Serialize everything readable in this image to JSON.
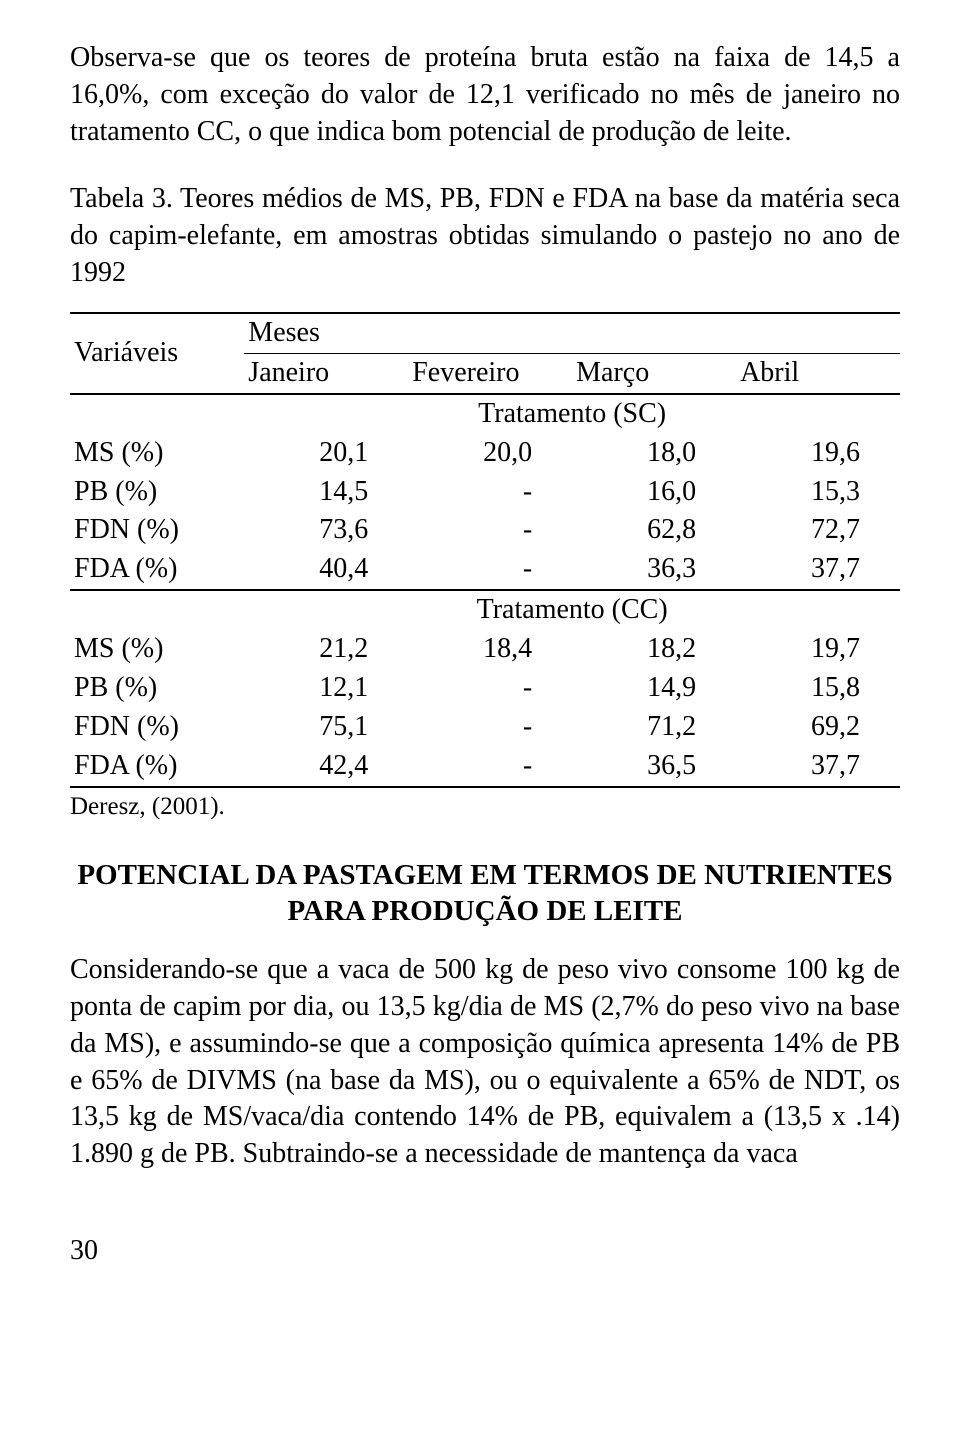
{
  "para1": "Observa-se que os teores de proteína bruta estão na faixa de 14,5 a 16,0%, com exceção do valor de 12,1 verificado no mês de janeiro no tratamento CC, o que indica bom potencial de produção de leite.",
  "tableCaption": "Tabela 3. Teores médios de MS, PB, FDN e FDA na base da matéria seca do capim-elefante, em amostras obtidas simulando o pastejo no ano de 1992",
  "headerVar": "Variáveis",
  "headerMeses": "Meses",
  "months": {
    "c1": "Janeiro",
    "c2": "Fevereiro",
    "c3": "Março",
    "c4": "Abril"
  },
  "trSC": "Tratamento (SC)",
  "trCC": "Tratamento (CC)",
  "rowsSC": {
    "r0": {
      "label": "MS (%)",
      "c1": "20,1",
      "c2": "20,0",
      "c3": "18,0",
      "c4": "19,6"
    },
    "r1": {
      "label": "PB (%)",
      "c1": "14,5",
      "c2": "-",
      "c3": "16,0",
      "c4": "15,3"
    },
    "r2": {
      "label": "FDN (%)",
      "c1": "73,6",
      "c2": "-",
      "c3": "62,8",
      "c4": "72,7"
    },
    "r3": {
      "label": "FDA (%)",
      "c1": "40,4",
      "c2": "-",
      "c3": "36,3",
      "c4": "37,7"
    }
  },
  "rowsCC": {
    "r0": {
      "label": "MS (%)",
      "c1": "21,2",
      "c2": "18,4",
      "c3": "18,2",
      "c4": "19,7"
    },
    "r1": {
      "label": "PB (%)",
      "c1": "12,1",
      "c2": "-",
      "c3": "14,9",
      "c4": "15,8"
    },
    "r2": {
      "label": "FDN (%)",
      "c1": "75,1",
      "c2": "-",
      "c3": "71,2",
      "c4": "69,2"
    },
    "r3": {
      "label": "FDA (%)",
      "c1": "42,4",
      "c2": "-",
      "c3": "36,5",
      "c4": "37,7"
    }
  },
  "source": "Deresz, (2001).",
  "heading": "POTENCIAL DA PASTAGEM EM TERMOS DE NUTRIENTES PARA PRODUÇÃO DE LEITE",
  "para2": "Considerando-se que a vaca de 500 kg de peso vivo consome 100 kg de ponta de capim por dia, ou 13,5 kg/dia de MS (2,7% do peso vivo na base da MS), e assumindo-se que a composição química apresenta 14% de PB e 65% de DIVMS (na base da MS), ou o equivalente a 65% de NDT, os 13,5 kg de MS/vaca/dia contendo 14% de PB, equivalem a (13,5 x .14) 1.890 g de PB. Subtraindo-se a necessidade de mantença da vaca",
  "pageNumber": "30"
}
